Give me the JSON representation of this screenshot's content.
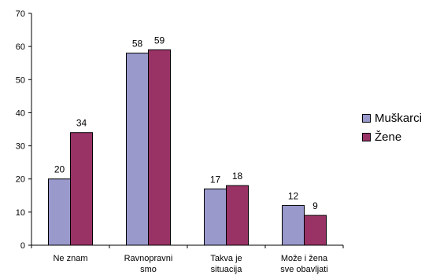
{
  "chart_data": {
    "type": "bar",
    "categories": [
      [
        "Ne znam"
      ],
      [
        "Ravnopravni",
        "smo"
      ],
      [
        "Takva je",
        "situacija"
      ],
      [
        "Može i žena",
        "sve obavljati"
      ]
    ],
    "series": [
      {
        "name": "Muškarci",
        "color": "#9999cc",
        "values": [
          20,
          58,
          17,
          12
        ]
      },
      {
        "name": "Žene",
        "color": "#993366",
        "values": [
          34,
          59,
          18,
          9
        ]
      }
    ],
    "ylim": [
      0,
      70
    ],
    "yticks": [
      0,
      10,
      20,
      30,
      40,
      50,
      60,
      70
    ],
    "legend_position": "right",
    "grid": false,
    "title": "",
    "xlabel": "",
    "ylabel": ""
  }
}
